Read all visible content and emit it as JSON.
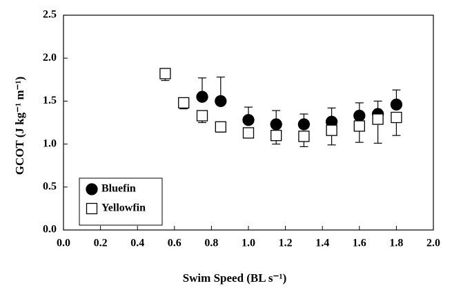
{
  "chart_data": {
    "type": "scatter",
    "xlabel": "Swim Speed (BL s⁻¹)",
    "ylabel": "GCOT (J kg⁻¹ m⁻¹)",
    "xlim": [
      0,
      2
    ],
    "ylim": [
      0,
      2.5
    ],
    "xticks": [
      {
        "value": 0,
        "label": "0.0"
      },
      0.2,
      0.4,
      0.6,
      0.8,
      {
        "value": 1,
        "label": "1.0"
      },
      1.2,
      1.4,
      1.6,
      1.8,
      {
        "value": 2,
        "label": "2.0"
      }
    ],
    "yticks": [
      {
        "value": 0,
        "label": "0.0"
      },
      0.5,
      {
        "value": 1,
        "label": "1.0"
      },
      1.5,
      {
        "value": 2,
        "label": "2.0"
      },
      2.5
    ],
    "legend": "lower left",
    "series": [
      {
        "name": "Bluefin",
        "color": "#000000",
        "marker": "circle",
        "error_direction": "up",
        "x": [
          0.75,
          0.85,
          1.0,
          1.15,
          1.3,
          1.45,
          1.6,
          1.7,
          1.8
        ],
        "values": [
          1.55,
          1.5,
          1.28,
          1.23,
          1.23,
          1.26,
          1.33,
          1.35,
          1.46
        ],
        "errors": [
          0.22,
          0.28,
          0.15,
          0.16,
          0.12,
          0.16,
          0.15,
          0.15,
          0.17
        ]
      },
      {
        "name": "Yellowfin",
        "color": "#ffffff",
        "marker": "square",
        "error_direction": "down",
        "x": [
          0.55,
          0.65,
          0.75,
          0.85,
          1.0,
          1.15,
          1.3,
          1.45,
          1.6,
          1.7,
          1.8
        ],
        "values": [
          1.82,
          1.48,
          1.33,
          1.2,
          1.13,
          1.1,
          1.09,
          1.16,
          1.21,
          1.29,
          1.31
        ],
        "errors": [
          0.08,
          0.07,
          0.08,
          0.06,
          0.06,
          0.1,
          0.12,
          0.17,
          0.19,
          0.28,
          0.21
        ]
      }
    ]
  }
}
